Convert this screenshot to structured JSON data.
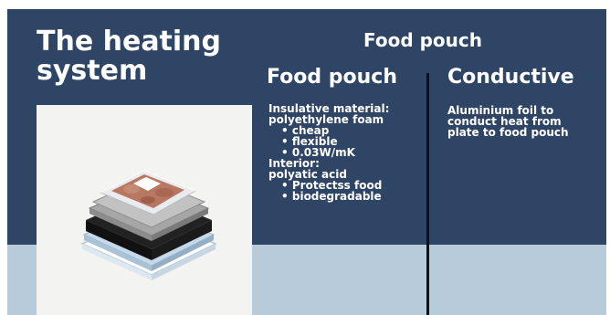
{
  "slide": {
    "title": "The heating\nsystem",
    "top_heading": "Food pouch",
    "left_column": {
      "heading": "Food pouch",
      "material_label": "Insulative material:",
      "material_name": "polyethylene foam",
      "material_items": [
        "cheap",
        "flexible",
        "0.03W/mK"
      ],
      "interior_label": "Interior:",
      "interior_name": "polyatic acid",
      "interior_items": [
        "Protectss food",
        "biodegradable"
      ]
    },
    "right_column": {
      "heading": "Conductive",
      "text": "Aluminium foil to\nconduct heat from\nplate to food pouch"
    }
  },
  "colors": {
    "navy": "#2f4565",
    "light_blue": "#b7cbdb"
  },
  "image": {
    "subject": "layered heating pad with food pouch illustration"
  }
}
